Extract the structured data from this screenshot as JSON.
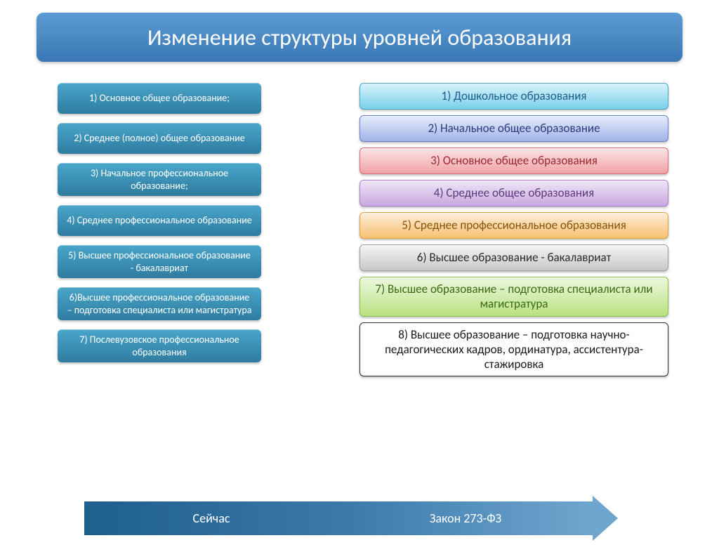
{
  "title": {
    "text": "Изменение структуры уровней образования",
    "bg": "linear-gradient(#5b9bd5,#3b78b5)",
    "color": "#ffffff"
  },
  "left": {
    "bg_top": "#4aa6c9",
    "bg_bottom": "#2e7ca0",
    "text_color": "#ffffff",
    "items": [
      {
        "label": "1) Основное общее образование;"
      },
      {
        "label": "2) Среднее (полное) общее образование"
      },
      {
        "label": "3) Начальное профессиональное образование;"
      },
      {
        "label": "4) Среднее профессиональное образование"
      },
      {
        "label": "5) Высшее профессиональное образование - бакалавриат"
      },
      {
        "label": "6)Высшее профессиональное образование – подготовка специалиста или магистратура"
      },
      {
        "label": "7) Послевузовское профессиональное образования"
      }
    ]
  },
  "right": {
    "items": [
      {
        "label": "1) Дошкольное образования",
        "grad": "linear-gradient(#d8f3fb,#79d0e8)",
        "text": "#1f5a8a",
        "border": "#4aa6c9"
      },
      {
        "label": "2) Начальное общее образование",
        "grad": "linear-gradient(#e6ecfb,#9fb4e8)",
        "text": "#2a3a7a",
        "border": "#6a7ecb"
      },
      {
        "label": "3) Основное общее образования",
        "grad": "linear-gradient(#fbe4e6,#f0a2a6)",
        "text": "#9a2a30",
        "border": "#d76a70"
      },
      {
        "label": "4) Среднее общее образования",
        "grad": "linear-gradient(#efe6f6,#c9a8e0)",
        "text": "#5a397a",
        "border": "#a87ac9"
      },
      {
        "label": "5) Среднее профессиональное образования",
        "grad": "linear-gradient(#fdeedb,#f6c071)",
        "text": "#8a5208",
        "border": "#e0a040"
      },
      {
        "label": "6) Высшее образование - бакалавриат",
        "grad": "linear-gradient(#f5f5f5,#c8c8c8)",
        "text": "#2b2b2b",
        "border": "#9e9e9e"
      },
      {
        "label": "7) Высшее образование – подготовка специалиста или магистратура",
        "grad": "linear-gradient(#ecf7df,#b9e181)",
        "text": "#3a6a10",
        "border": "#89c048"
      },
      {
        "label": "8) Высшее образование – подготовка научно-педагогических кадров, ординатура, ассистентура- стажировка",
        "grad": "#ffffff",
        "text": "#1a1a1a",
        "border": "#2b2b2b"
      }
    ]
  },
  "arrow": {
    "seg1_label": "Сейчас",
    "seg2_label": "Закон 273-ФЗ",
    "seg1_color": "#1f5f8b",
    "seg2_color": "#3a78a8",
    "head_color": "#6fa6cf",
    "text_color": "#ffffff"
  }
}
